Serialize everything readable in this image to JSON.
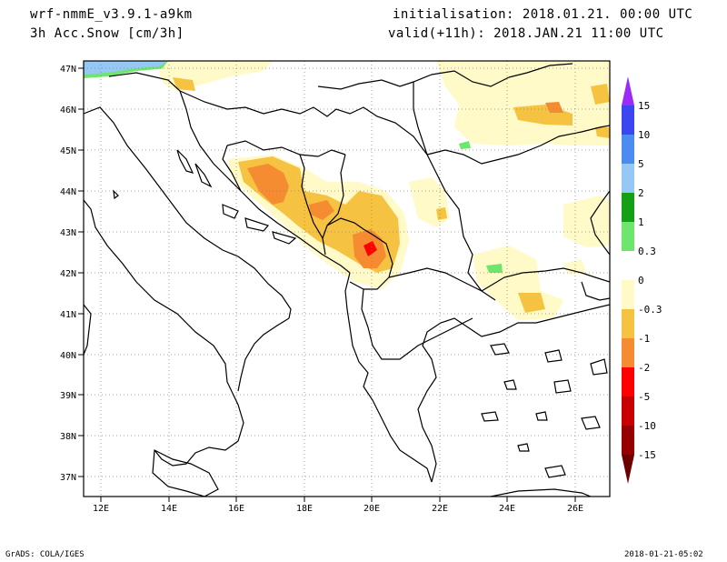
{
  "header": {
    "model": "wrf-nmmE_v3.9.1-a9km",
    "field": "3h Acc.Snow [cm/3h]",
    "init": "initialisation: 2018.01.21.  00:00 UTC",
    "valid": "valid(+11h): 2018.JAN.21 11:00 UTC"
  },
  "axes": {
    "lon_labels": [
      "12E",
      "14E",
      "16E",
      "18E",
      "20E",
      "22E",
      "24E",
      "26E"
    ],
    "lat_labels": [
      "47N",
      "46N",
      "45N",
      "44N",
      "43N",
      "42N",
      "41N",
      "40N",
      "39N",
      "38N",
      "37N"
    ]
  },
  "legend": {
    "labels": [
      "15",
      "10",
      "5",
      "2",
      "1",
      "0.3",
      "0",
      "-0.3",
      "-1",
      "-2",
      "-5",
      "-10",
      "-15"
    ],
    "colors": [
      "#9b2cf5",
      "#3c46f0",
      "#4b8cf0",
      "#96c8f5",
      "#14a014",
      "#6ee66e",
      "#ffffff",
      "#fffac8",
      "#f5c341",
      "#f58c32",
      "#ff0000",
      "#c80000",
      "#960000",
      "#6e0000"
    ]
  },
  "footer": {
    "left": "GrADS: COLA/IGES",
    "right": "2018-01-21-05:02"
  }
}
